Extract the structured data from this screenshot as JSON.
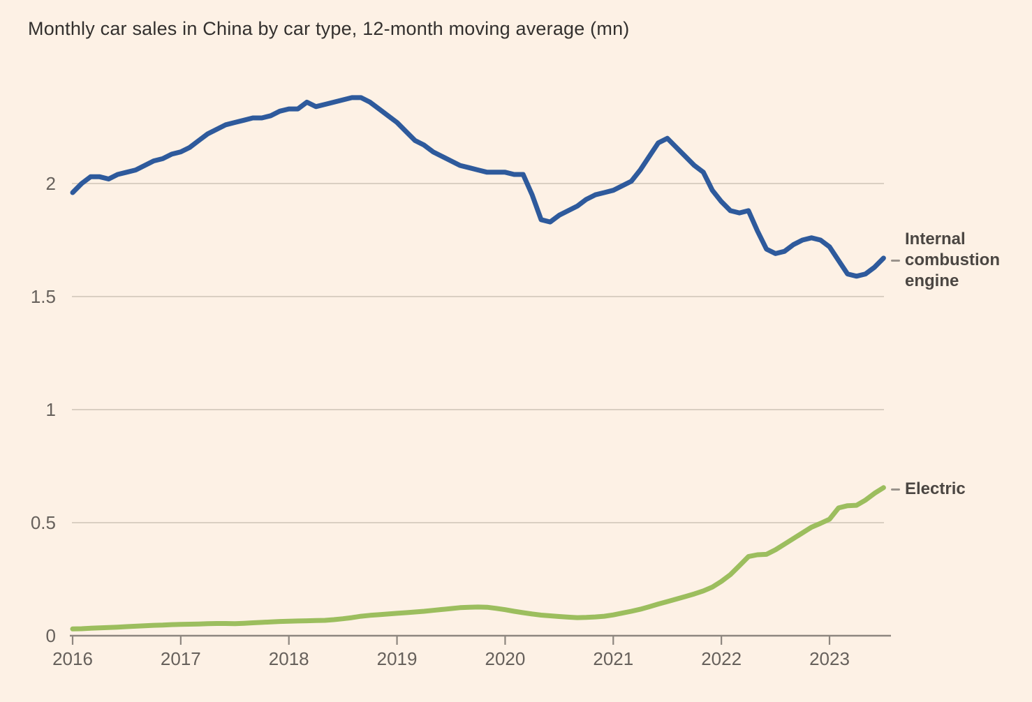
{
  "title": "Monthly car sales in China by car type, 12-month moving average (mn)",
  "colors": {
    "background": "#fdf1e5",
    "title_text": "#33302e",
    "tick_text": "#66605b",
    "annotation_text": "#4b4642",
    "axis_line": "#8d867f",
    "grid_line": "#d5cabd",
    "ice_line": "#2e5a9c",
    "electric_line": "#9cbe5e",
    "label_dash": "#9a938c"
  },
  "chart_data": {
    "type": "line",
    "title": "Monthly car sales in China by car type, 12-month moving average (mn)",
    "xlabel": "",
    "ylabel": "",
    "x_start": "2016-01",
    "x_end": "2023-07",
    "x_interval": "monthly",
    "x_tick_labels": [
      "2016",
      "2017",
      "2018",
      "2019",
      "2020",
      "2021",
      "2022",
      "2023"
    ],
    "y_ticks": [
      0,
      0.5,
      1,
      1.5,
      2
    ],
    "y_tick_labels": [
      "0",
      "0.5",
      "1",
      "1.5",
      "2"
    ],
    "ylim": [
      0,
      2.5
    ],
    "grid": "horizontal",
    "legend_position": "right-annotations",
    "series": [
      {
        "name": "Internal combustion engine",
        "color": "#2e5a9c",
        "values": [
          1.96,
          2.0,
          2.03,
          2.03,
          2.02,
          2.04,
          2.05,
          2.06,
          2.08,
          2.1,
          2.11,
          2.13,
          2.14,
          2.16,
          2.19,
          2.22,
          2.24,
          2.26,
          2.27,
          2.28,
          2.29,
          2.29,
          2.3,
          2.32,
          2.33,
          2.33,
          2.36,
          2.34,
          2.35,
          2.36,
          2.37,
          2.38,
          2.38,
          2.36,
          2.33,
          2.3,
          2.27,
          2.23,
          2.19,
          2.17,
          2.14,
          2.12,
          2.1,
          2.08,
          2.07,
          2.06,
          2.05,
          2.05,
          2.05,
          2.04,
          2.04,
          1.95,
          1.84,
          1.83,
          1.86,
          1.88,
          1.9,
          1.93,
          1.95,
          1.96,
          1.97,
          1.99,
          2.01,
          2.06,
          2.12,
          2.18,
          2.2,
          2.16,
          2.12,
          2.08,
          2.05,
          1.97,
          1.92,
          1.88,
          1.87,
          1.88,
          1.79,
          1.71,
          1.69,
          1.7,
          1.73,
          1.75,
          1.76,
          1.75,
          1.72,
          1.66,
          1.6,
          1.59,
          1.6,
          1.63,
          1.67
        ]
      },
      {
        "name": "Electric",
        "color": "#9cbe5e",
        "values": [
          0.03,
          0.031,
          0.033,
          0.035,
          0.036,
          0.038,
          0.04,
          0.042,
          0.044,
          0.046,
          0.047,
          0.049,
          0.05,
          0.051,
          0.052,
          0.053,
          0.054,
          0.054,
          0.053,
          0.055,
          0.057,
          0.059,
          0.061,
          0.063,
          0.064,
          0.065,
          0.066,
          0.067,
          0.068,
          0.071,
          0.075,
          0.08,
          0.086,
          0.09,
          0.093,
          0.096,
          0.099,
          0.102,
          0.105,
          0.108,
          0.112,
          0.116,
          0.12,
          0.124,
          0.126,
          0.127,
          0.126,
          0.121,
          0.115,
          0.108,
          0.102,
          0.096,
          0.091,
          0.088,
          0.085,
          0.082,
          0.08,
          0.081,
          0.083,
          0.086,
          0.092,
          0.1,
          0.108,
          0.117,
          0.128,
          0.14,
          0.151,
          0.162,
          0.173,
          0.185,
          0.198,
          0.215,
          0.24,
          0.27,
          0.31,
          0.35,
          0.358,
          0.36,
          0.38,
          0.405,
          0.43,
          0.455,
          0.48,
          0.497,
          0.515,
          0.565,
          0.575,
          0.577,
          0.6,
          0.63,
          0.655
        ]
      }
    ]
  }
}
